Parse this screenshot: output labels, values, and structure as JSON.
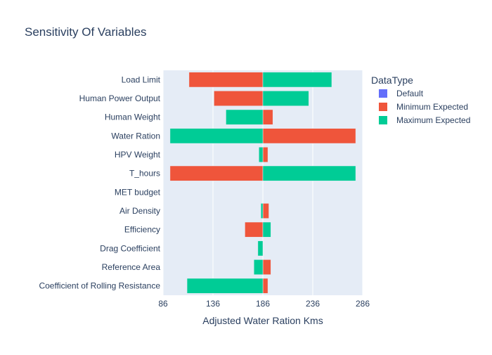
{
  "chart_data": {
    "type": "bar",
    "orientation": "horizontal",
    "barmode": "overlay",
    "base": 186,
    "title": "Sensitivity Of Variables",
    "xlabel": "Adjusted Water Ration Kms",
    "ylabel": "",
    "xlim": [
      86,
      286
    ],
    "xticks": [
      86,
      136,
      186,
      236,
      286
    ],
    "grid": true,
    "legend": {
      "title": "DataType",
      "placement": "right"
    },
    "categories": [
      "Load Limit",
      "Human Power Output",
      "Human Weight",
      "Water Ration",
      "HPV Weight",
      "T_hours",
      "MET budget",
      "Air Density",
      "Efficiency",
      "Drag Coefficient",
      "Reference Area",
      "Coefficient of Rolling Resistance"
    ],
    "series": [
      {
        "name": "Default",
        "color": "#636efa",
        "values": [
          186,
          186,
          186,
          186,
          186,
          186,
          186,
          186,
          186,
          186,
          186,
          186
        ]
      },
      {
        "name": "Minimum Expected",
        "color": "#ef553b",
        "values": [
          112,
          137,
          196,
          279,
          191,
          93,
          186,
          192,
          168,
          186,
          194,
          191
        ]
      },
      {
        "name": "Maximum Expected",
        "color": "#00cc96",
        "values": [
          255,
          232,
          149,
          93,
          182,
          279,
          186,
          184,
          194,
          181,
          177,
          110
        ]
      }
    ]
  }
}
